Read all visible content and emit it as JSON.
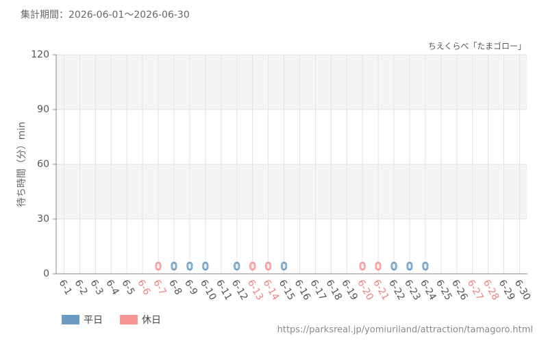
{
  "chart_data": {
    "type": "bar",
    "title": "集計期間：2026-06-01～2026-06-30",
    "subtitle": "ちえくらべ「たまゴロー」",
    "y_label": "待ち時間（分）min",
    "source": "https://parksreal.jp/yomiuriland/attraction/tamagoro.html",
    "categories": [
      "6-1",
      "6-2",
      "6-3",
      "6-4",
      "6-5",
      "6-6",
      "6-7",
      "6-8",
      "6-9",
      "6-10",
      "6-11",
      "6-12",
      "6-13",
      "6-14",
      "6-15",
      "6-16",
      "6-17",
      "6-18",
      "6-19",
      "6-20",
      "6-21",
      "6-22",
      "6-23",
      "6-24",
      "6-25",
      "6-26",
      "6-27",
      "6-28",
      "6-29",
      "6-30"
    ],
    "category_colors": [
      "#555",
      "#555",
      "#555",
      "#555",
      "#555",
      "#f08080",
      "#f08080",
      "#555",
      "#555",
      "#555",
      "#555",
      "#555",
      "#f08080",
      "#f08080",
      "#555",
      "#555",
      "#555",
      "#555",
      "#555",
      "#f08080",
      "#f08080",
      "#555",
      "#555",
      "#555",
      "#555",
      "#555",
      "#f08080",
      "#f08080",
      "#555",
      "#555"
    ],
    "series": [
      {
        "name": "平日",
        "color": "#6a9bc3",
        "values": [
          null,
          null,
          null,
          null,
          null,
          null,
          null,
          0,
          0,
          0,
          null,
          0,
          null,
          null,
          0,
          null,
          null,
          null,
          null,
          null,
          null,
          0,
          0,
          0,
          null,
          null,
          null,
          null,
          null,
          null
        ]
      },
      {
        "name": "休日",
        "color": "#f79595",
        "values": [
          null,
          null,
          null,
          null,
          null,
          null,
          0,
          null,
          null,
          null,
          null,
          null,
          0,
          0,
          null,
          null,
          null,
          null,
          null,
          0,
          0,
          null,
          null,
          null,
          null,
          null,
          null,
          null,
          null,
          null
        ]
      }
    ],
    "ylim": [
      0,
      120
    ],
    "yticks": [
      0,
      30,
      60,
      90,
      120
    ],
    "grid": true
  }
}
